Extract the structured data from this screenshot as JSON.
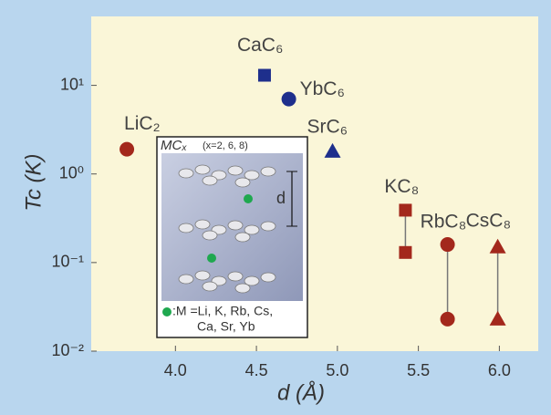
{
  "chart_data": {
    "type": "scatter",
    "x_label": "d (Å)",
    "y_label": "Tc (K)",
    "xlim": [
      3.48,
      6.24
    ],
    "ylim": [
      0.01,
      60
    ],
    "log_y": true,
    "xticks": [
      {
        "value": 4,
        "label": "4.0"
      },
      {
        "value": 4.5,
        "label": "4.5"
      },
      {
        "value": 5,
        "label": "5.0"
      },
      {
        "value": 5.5,
        "label": "5.5"
      },
      {
        "value": 6,
        "label": "6.0"
      }
    ],
    "yticks": [
      {
        "value": 0.01,
        "label": "10⁻²"
      },
      {
        "value": 0.1,
        "label": "10⁻¹"
      },
      {
        "value": 1,
        "label": "10⁰"
      },
      {
        "value": 10,
        "label": "10¹"
      }
    ],
    "series": [
      {
        "name": "LiC₂",
        "color": "#a3281c",
        "marker": "circle",
        "x": [
          3.7
        ],
        "values": [
          1.9
        ]
      },
      {
        "name": "CaC₆",
        "color": "#1e2f8c",
        "marker": "square",
        "x": [
          4.55
        ],
        "values": [
          13
        ]
      },
      {
        "name": "YbC₆",
        "color": "#1e2f8c",
        "marker": "circle",
        "x": [
          4.7
        ],
        "values": [
          7
        ]
      },
      {
        "name": "SrC₆",
        "color": "#1e2f8c",
        "marker": "triangle",
        "x": [
          4.97
        ],
        "values": [
          1.8
        ]
      },
      {
        "name": "KC₈",
        "color": "#a3281c",
        "marker": "square",
        "x": [
          5.42,
          5.42
        ],
        "values": [
          0.39,
          0.13
        ]
      },
      {
        "name": "RbC₈",
        "color": "#a3281c",
        "marker": "circle",
        "x": [
          5.68,
          5.68
        ],
        "values": [
          0.16,
          0.023
        ]
      },
      {
        "name": "CsC₈",
        "color": "#a3281c",
        "marker": "triangle",
        "x": [
          5.99,
          5.99
        ],
        "values": [
          0.15,
          0.023
        ]
      }
    ],
    "inset": {
      "title": "MCₓ",
      "subtitle": "(x=2, 6, 8)",
      "dimension_label": "d",
      "legend_line1": ":M =Li, K, Rb, Cs,",
      "legend_line2": "Ca, Sr, Yb"
    }
  }
}
